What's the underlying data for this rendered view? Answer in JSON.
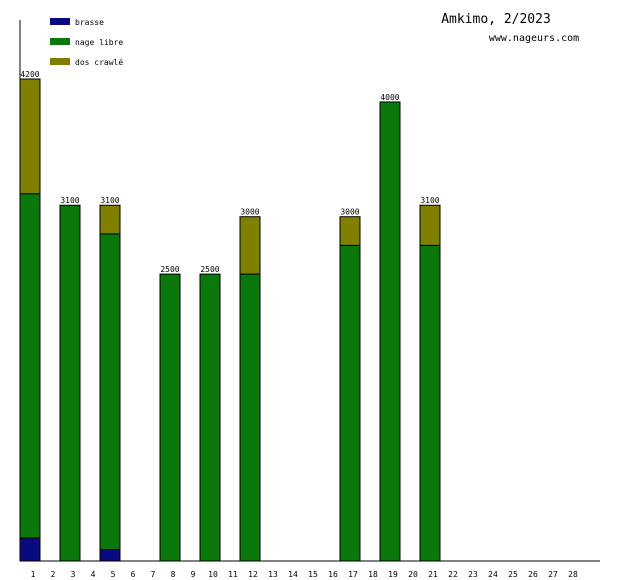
{
  "chart_data": {
    "type": "bar",
    "stacked": true,
    "title": "Amkimo, 2/2023",
    "subtitle": "www.nageurs.com",
    "legend": [
      {
        "name": "brasse",
        "color": "#0a0a80"
      },
      {
        "name": "nage libre",
        "color": "#0a780a"
      },
      {
        "name": "dos crawlé",
        "color": "#808000"
      }
    ],
    "categories": [
      "1",
      "2",
      "3",
      "4",
      "5",
      "6",
      "7",
      "8",
      "9",
      "10",
      "11",
      "12",
      "13",
      "14",
      "15",
      "16",
      "17",
      "18",
      "19",
      "20",
      "21",
      "22",
      "23",
      "24",
      "25",
      "26",
      "27",
      "28"
    ],
    "series": [
      {
        "name": "brasse",
        "values": [
          200,
          0,
          0,
          0,
          100,
          0,
          0,
          0,
          0,
          0,
          0,
          0,
          0,
          0,
          0,
          0,
          0,
          0,
          0,
          0,
          0,
          0,
          0,
          0,
          0,
          0,
          0,
          0
        ]
      },
      {
        "name": "nage libre",
        "values": [
          3000,
          0,
          3100,
          0,
          2750,
          0,
          0,
          2500,
          0,
          2500,
          0,
          2500,
          0,
          0,
          0,
          0,
          2750,
          0,
          4000,
          0,
          2750,
          0,
          0,
          0,
          0,
          0,
          0,
          0
        ]
      },
      {
        "name": "dos crawlé",
        "values": [
          1000,
          0,
          0,
          0,
          250,
          0,
          0,
          0,
          0,
          0,
          0,
          500,
          0,
          0,
          0,
          0,
          250,
          0,
          0,
          0,
          350,
          0,
          0,
          0,
          0,
          0,
          0,
          0
        ]
      }
    ],
    "totals": [
      "4200",
      "",
      "3100",
      "",
      "3100",
      "",
      "",
      "2500",
      "",
      "2500",
      "",
      "3000",
      "",
      "",
      "",
      "",
      "3000",
      "",
      "4000",
      "",
      "3100",
      "",
      "",
      "",
      "",
      "",
      "",
      ""
    ],
    "ylim": [
      0,
      4200
    ],
    "grid": false,
    "legend_position": "top-left"
  }
}
